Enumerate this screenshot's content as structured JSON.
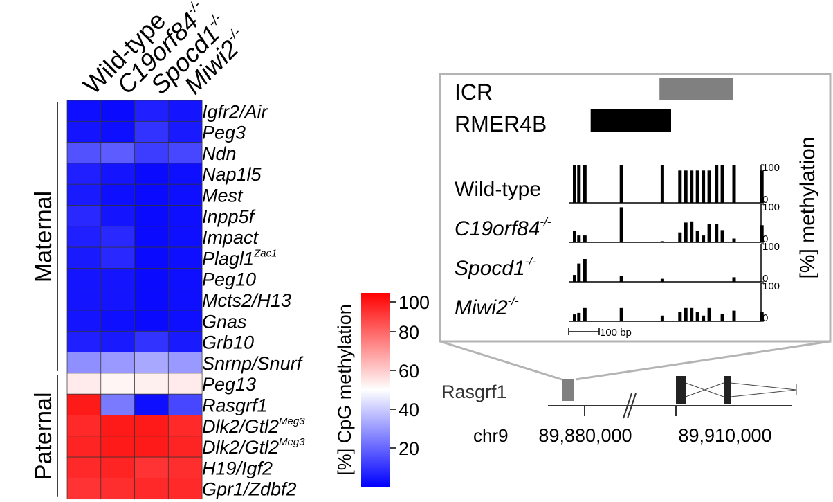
{
  "colors": {
    "low": "#0000ff",
    "mid": "#ffffff",
    "high": "#ff0000",
    "icr_bar": "#808080",
    "rmer_bar": "#000000",
    "gene_exon_light": "#808080",
    "gene_exon_dark": "#222222",
    "frame": "#b4b4b4"
  },
  "chart_data": [
    {
      "type": "heatmap",
      "columns": [
        {
          "base": "Wild-type",
          "sup": ""
        },
        {
          "base": "C19orf84",
          "sup": "-/-"
        },
        {
          "base": "Spocd1",
          "sup": "-/-"
        },
        {
          "base": "Miwi2",
          "sup": "-/-"
        }
      ],
      "rows": [
        {
          "base": "Igfr2/Air",
          "sup": ""
        },
        {
          "base": "Peg3",
          "sup": ""
        },
        {
          "base": "Ndn",
          "sup": ""
        },
        {
          "base": "Nap1l5",
          "sup": ""
        },
        {
          "base": "Mest",
          "sup": ""
        },
        {
          "base": "Inpp5f",
          "sup": ""
        },
        {
          "base": "Impact",
          "sup": ""
        },
        {
          "base": "Plagl1",
          "sup": "Zac1"
        },
        {
          "base": "Peg10",
          "sup": ""
        },
        {
          "base": "Mcts2/H13",
          "sup": ""
        },
        {
          "base": "Gnas",
          "sup": ""
        },
        {
          "base": "Grb10",
          "sup": ""
        },
        {
          "base": "Snrnp/Snurf",
          "sup": ""
        },
        {
          "base": "Peg13",
          "sup": ""
        },
        {
          "base": "Rasgrf1",
          "sup": ""
        },
        {
          "base": "Dlk2/Gtl2",
          "sup": "Meg3"
        },
        {
          "base": "Dlk2/Gtl2",
          "sup": "Meg3"
        },
        {
          "base": "H19/Igf2",
          "sup": ""
        },
        {
          "base": "Gpr1/Zdbf2",
          "sup": ""
        }
      ],
      "values": [
        [
          3,
          2,
          6,
          4
        ],
        [
          4,
          3,
          10,
          5
        ],
        [
          16,
          18,
          12,
          14
        ],
        [
          6,
          4,
          2,
          3
        ],
        [
          5,
          3,
          2,
          3
        ],
        [
          8,
          4,
          2,
          3
        ],
        [
          6,
          8,
          2,
          3
        ],
        [
          5,
          8,
          2,
          3
        ],
        [
          4,
          4,
          2,
          3
        ],
        [
          4,
          4,
          2,
          3
        ],
        [
          4,
          3,
          2,
          3
        ],
        [
          6,
          5,
          10,
          5
        ],
        [
          28,
          30,
          33,
          30
        ],
        [
          54,
          52,
          53,
          54
        ],
        [
          95,
          24,
          3,
          14
        ],
        [
          92,
          95,
          95,
          92
        ],
        [
          93,
          95,
          95,
          93
        ],
        [
          92,
          93,
          90,
          91
        ],
        [
          90,
          91,
          92,
          92
        ]
      ],
      "groups": [
        {
          "label": "Maternal",
          "from_row": 0,
          "to_row": 12
        },
        {
          "label": "Paternal",
          "from_row": 13,
          "to_row": 18
        }
      ],
      "colorbar": {
        "label": "[%] CpG methylation",
        "ticks": [
          20,
          40,
          60,
          80,
          100
        ],
        "range": [
          0,
          100
        ]
      }
    },
    {
      "type": "bar",
      "title": "",
      "feature_labels": {
        "icr": "ICR",
        "rmer": "RMER4B"
      },
      "icr_bp": [
        124,
        224
      ],
      "rmer_bp": [
        30,
        140
      ],
      "bp_range": [
        0,
        260
      ],
      "ylabel": "[%] methylation",
      "ylim": [
        0,
        100
      ],
      "y_ticks": [
        0,
        100
      ],
      "scale_label": "100 bp",
      "cpg_positions": [
        8,
        14,
        22,
        72,
        128,
        152,
        160,
        168,
        176,
        184,
        192,
        202,
        210,
        226,
        264
      ],
      "series": [
        {
          "base": "Wild-type",
          "sup": "",
          "values": [
            100,
            100,
            100,
            100,
            100,
            85,
            85,
            85,
            85,
            85,
            85,
            100,
            100,
            100,
            85
          ]
        },
        {
          "base": "C19orf84",
          "sup": "-/-",
          "values": [
            30,
            18,
            18,
            92,
            3,
            26,
            52,
            55,
            30,
            18,
            48,
            48,
            32,
            10,
            45
          ]
        },
        {
          "base": "Spocd1",
          "sup": "-/-",
          "values": [
            18,
            48,
            60,
            15,
            8,
            0,
            0,
            0,
            0,
            0,
            0,
            0,
            0,
            12,
            0
          ]
        },
        {
          "base": "Miwi2",
          "sup": "-/-",
          "values": [
            18,
            22,
            35,
            35,
            15,
            25,
            35,
            35,
            25,
            15,
            35,
            0,
            20,
            28,
            25
          ]
        }
      ]
    },
    {
      "type": "diagram",
      "gene_label": "Rasgrf1",
      "chrom_label": "chr9",
      "coordinates": [
        "89,880,000",
        "89,910,000"
      ]
    }
  ]
}
